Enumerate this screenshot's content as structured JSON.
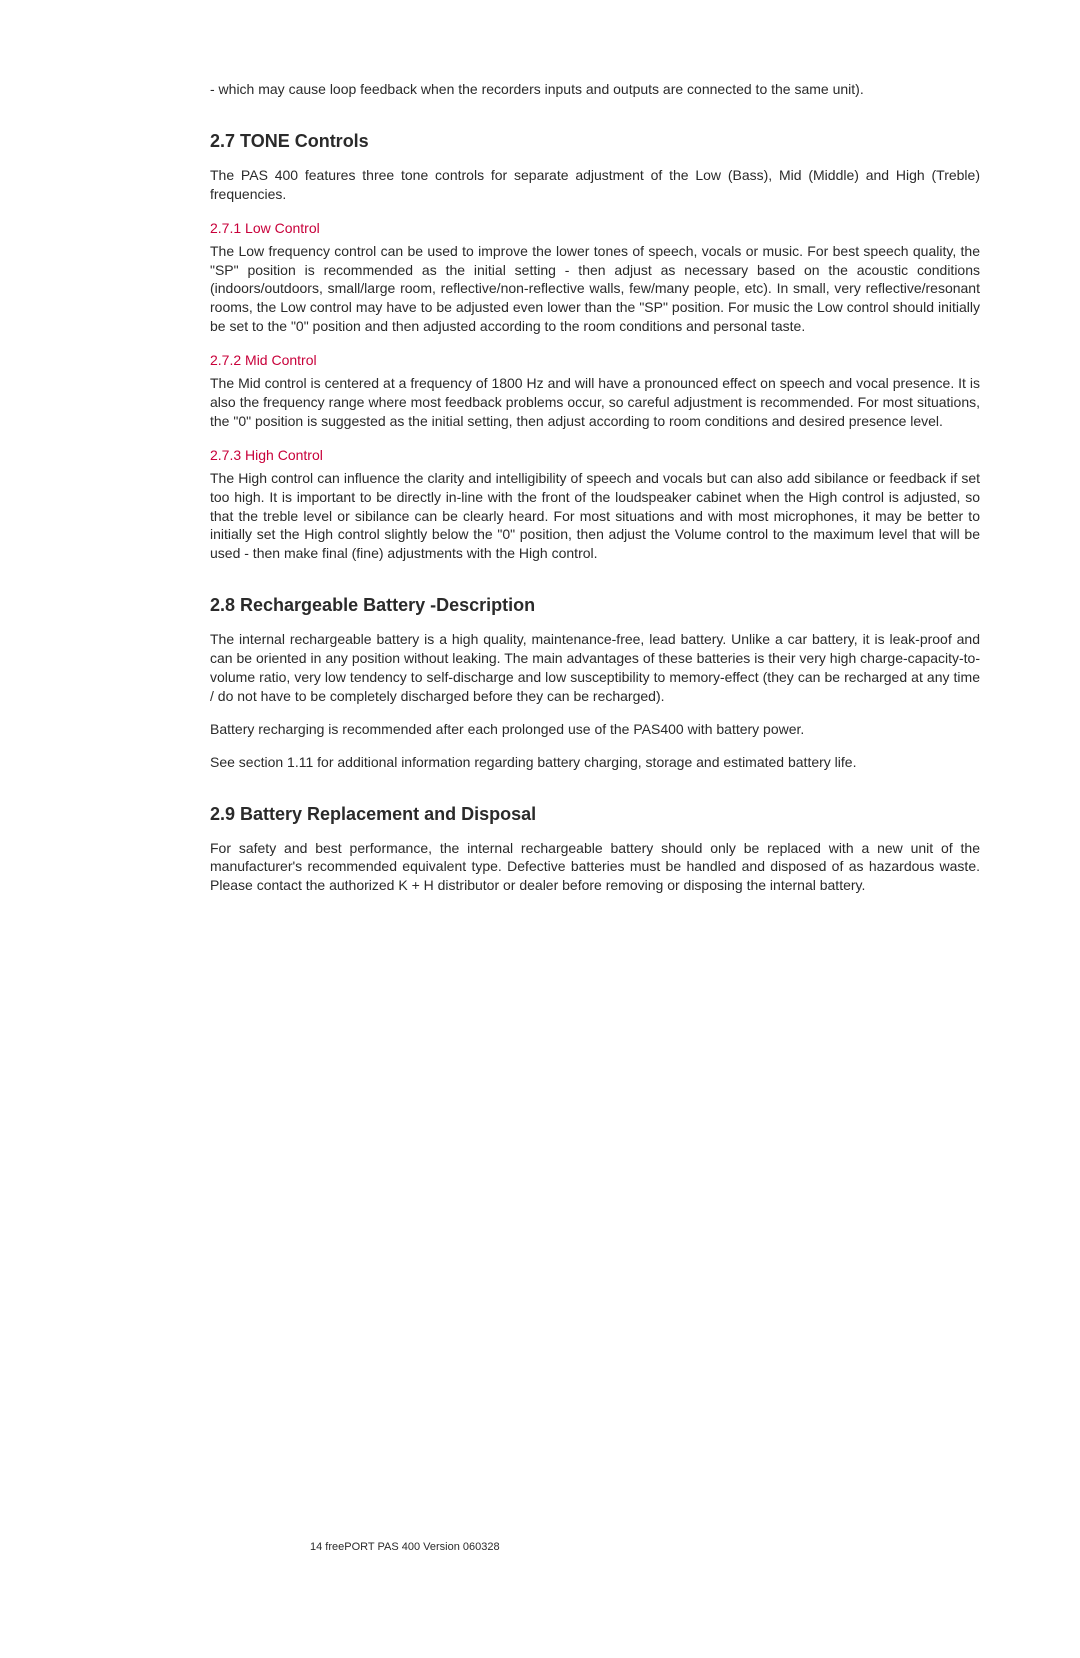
{
  "intro_paragraph": "- which may cause loop feedback when the recorders inputs and outputs are connected to the same unit).",
  "section_27": {
    "heading": "2.7 TONE Controls",
    "intro": "The PAS 400 features three tone controls for separate adjustment of the Low (Bass), Mid (Middle) and High (Treble) frequencies.",
    "sub1": {
      "heading": "2.7.1 Low Control",
      "body": "The Low frequency control can be used to improve the lower tones of speech, vocals or music. For best speech quality, the \"SP\" position is recommended as the initial setting - then adjust as necessary based on the acoustic conditions (indoors/outdoors, small/large room, reflective/non-reflective walls, few/many people, etc). In small, very reflective/resonant rooms, the Low control may have to be adjusted even lower than the \"SP\" position. For music the Low control should initially be set to the \"0\" position and then adjusted according to the room conditions and personal taste."
    },
    "sub2": {
      "heading": "2.7.2 Mid Control",
      "body": "The Mid control is centered at a frequency of 1800 Hz and will have a pronounced effect on speech and vocal presence. It is also the frequency range where most feedback problems occur, so careful adjustment is recommended. For most situations, the \"0\" position is suggested as the initial setting, then adjust according to room conditions and desired presence level."
    },
    "sub3": {
      "heading": "2.7.3 High Control",
      "body": "The High control can influence the clarity and intelligibility of speech and vocals but can also add sibilance or feedback if set too high. It is important to be directly in-line with the front of the loudspeaker cabinet when the High control is adjusted, so that the treble level or sibilance can be clearly heard. For most situations and with most microphones, it may be better to initially set the High control slightly below the \"0\" position, then adjust the Volume control to the maximum level that will be used - then make final (fine) adjustments with the High control."
    }
  },
  "section_28": {
    "heading": "2.8 Rechargeable Battery -Description",
    "p1": "The internal rechargeable battery is a high quality, maintenance-free, lead battery. Unlike a car battery, it is leak-proof and can be oriented in any position without leaking. The main advantages of these batteries is their very high charge-capacity-to-volume ratio, very low tendency to self-discharge and low susceptibility to memory-effect (they can be recharged at any time / do not have to be completely discharged before they can be recharged).",
    "p2": "Battery recharging is recommended after each prolonged use of the PAS400 with battery power.",
    "p3": "See section 1.11 for additional information regarding battery charging, storage and estimated battery life."
  },
  "section_29": {
    "heading": "2.9 Battery Replacement and Disposal",
    "body": "For safety and best performance, the internal rechargeable battery should only be replaced with a new unit of the manufacturer's recommended equivalent type. Defective batteries must be handled and disposed of as hazardous waste. Please contact the authorized K + H distributor or dealer before removing or disposing the internal battery."
  },
  "footer": "14 freePORT PAS 400 Version 060328"
}
